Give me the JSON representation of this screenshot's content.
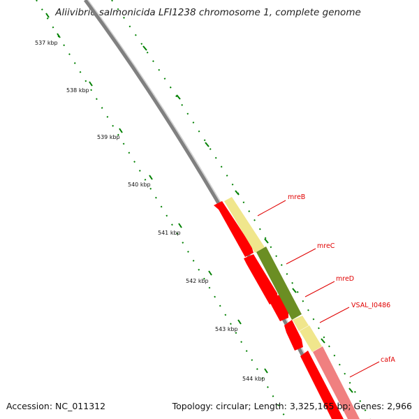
{
  "title": "Aliivibrio salmonicida LFI1238 chromosome 1, complete genome",
  "footer": {
    "accession": "Accession: NC_011312",
    "summary": "Topology: circular; Length: 3,325,165 bp; Genes: 2,966"
  },
  "scale": {
    "unit": "kbp",
    "ticks": [
      "537 kbp",
      "538 kbp",
      "539 kbp",
      "540 kbp",
      "541 kbp",
      "542 kbp",
      "543 kbp",
      "544 kbp"
    ]
  },
  "genes": [
    {
      "name": "mreB",
      "color": "#f0e68c",
      "strand": "outer"
    },
    {
      "name": "mreC",
      "color": "#6b8e23",
      "strand": "outer"
    },
    {
      "name": "mreD",
      "color": "#f0e68c",
      "strand": "outer"
    },
    {
      "name": "VSAL_I0486",
      "color": "#f0e68c",
      "strand": "outer"
    },
    {
      "name": "cafA",
      "color": "#f08080",
      "strand": "outer"
    }
  ],
  "colors": {
    "backbone": "#808080",
    "tick": "#008000",
    "cds": "#ff0000",
    "label": "#e00000"
  }
}
